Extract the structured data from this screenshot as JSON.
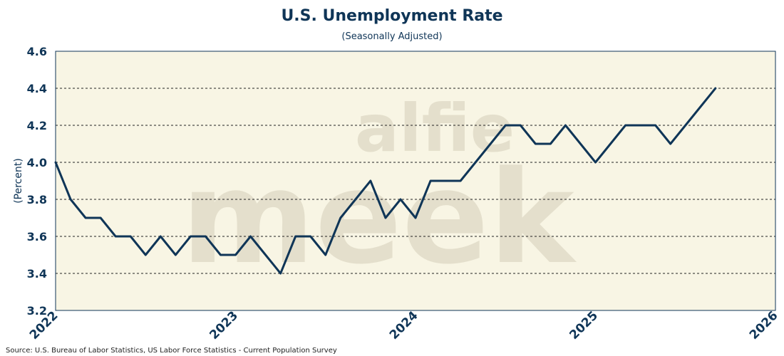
{
  "colors": {
    "line": "#0f3557",
    "plot_bg": "#f8f5e4",
    "grid": "#222222",
    "watermark": "#d8d2bd"
  },
  "watermark": {
    "line1": "alfie",
    "line2": "meek"
  },
  "source": "Source: U.S. Bureau of Labor Statistics, US Labor Force Statistics - Current Population Survey",
  "chart_data": {
    "type": "line",
    "title": "U.S. Unemployment Rate",
    "subtitle": "(Seasonally Adjusted)",
    "xlabel": "",
    "ylabel": "(Percent)",
    "xlim": [
      "2022-01",
      "2026-01"
    ],
    "ylim": [
      3.2,
      4.6
    ],
    "yticks": [
      "3.2",
      "3.4",
      "3.6",
      "3.8",
      "4.0",
      "4.2",
      "4.4",
      "4.6"
    ],
    "ytick_values": [
      3.2,
      3.4,
      3.6,
      3.8,
      4.0,
      4.2,
      4.4,
      4.6
    ],
    "xticks": [
      "2022",
      "2023",
      "2024",
      "2025",
      "2026"
    ],
    "xtick_values": [
      "2022-01",
      "2023-01",
      "2024-01",
      "2025-01",
      "2026-01"
    ],
    "grid": "horizontal dashed",
    "series": [
      {
        "x": [
          "2022-01",
          "2022-02",
          "2022-03",
          "2022-04",
          "2022-05",
          "2022-06",
          "2022-07",
          "2022-08",
          "2022-09",
          "2022-10",
          "2022-11",
          "2022-12",
          "2023-01",
          "2023-02",
          "2023-03",
          "2023-04",
          "2023-05",
          "2023-06",
          "2023-07",
          "2023-08",
          "2023-09",
          "2023-10",
          "2023-11",
          "2023-12",
          "2024-01",
          "2024-02",
          "2024-03",
          "2024-04",
          "2024-05",
          "2024-06",
          "2024-07",
          "2024-08",
          "2024-09",
          "2024-10",
          "2024-11",
          "2024-12",
          "2025-01",
          "2025-02",
          "2025-03",
          "2025-04",
          "2025-05",
          "2025-06",
          "2025-07",
          "2025-08",
          "2025-09"
        ],
        "values": [
          4.0,
          3.8,
          3.7,
          3.7,
          3.6,
          3.6,
          3.5,
          3.6,
          3.5,
          3.6,
          3.6,
          3.5,
          3.5,
          3.6,
          3.5,
          3.4,
          3.6,
          3.6,
          3.5,
          3.7,
          3.8,
          3.9,
          3.7,
          3.8,
          3.7,
          3.9,
          3.9,
          3.9,
          4.0,
          4.1,
          4.2,
          4.2,
          4.1,
          4.1,
          4.2,
          4.1,
          4.0,
          4.1,
          4.2,
          4.2,
          4.2,
          4.1,
          4.2,
          4.3,
          4.4
        ]
      }
    ]
  }
}
